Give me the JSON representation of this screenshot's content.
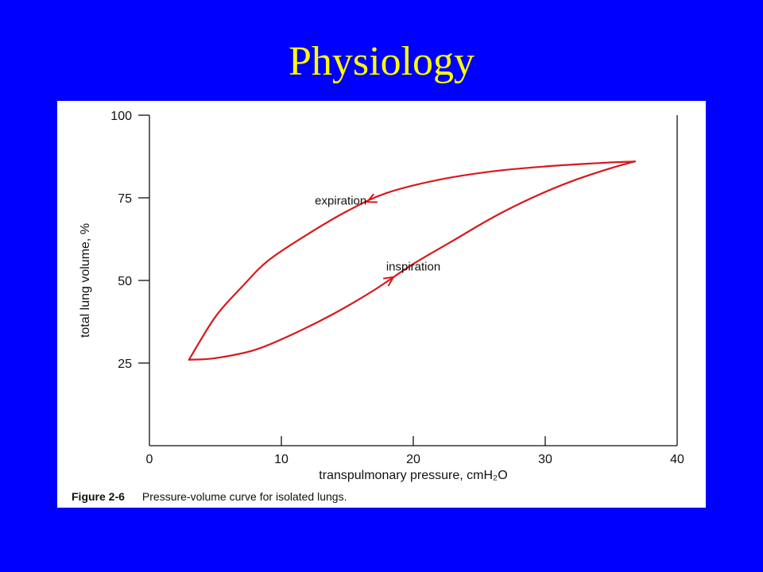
{
  "slide": {
    "title": "Physiology"
  },
  "chart_data": {
    "type": "line",
    "xlabel": "transpulmonary pressure, cmH₂O",
    "ylabel": "total lung volume, %",
    "xlim": [
      0,
      40
    ],
    "ylim": [
      0,
      100
    ],
    "x_ticks": [
      0,
      10,
      20,
      30,
      40
    ],
    "y_ticks": [
      25,
      50,
      75,
      100
    ],
    "grid": false,
    "series": [
      {
        "name": "inspiration",
        "x": [
          3,
          5,
          8,
          11,
          14,
          17,
          20,
          23,
          26,
          29,
          32,
          35,
          36.8
        ],
        "y": [
          26,
          26.5,
          29,
          34,
          40,
          47,
          55,
          62,
          69,
          75,
          80,
          84,
          86
        ],
        "color": "#d7191c"
      },
      {
        "name": "expiration",
        "x": [
          36.8,
          34,
          30,
          26,
          22,
          18,
          15,
          12,
          9,
          7,
          5,
          3
        ],
        "y": [
          86,
          85.5,
          84.5,
          83,
          80.5,
          76.5,
          71,
          64,
          56,
          48,
          39,
          26
        ],
        "color": "#d7191c"
      }
    ],
    "annotations": [
      {
        "text": "expiration",
        "x": 14.5,
        "y": 73
      },
      {
        "text": "inspiration",
        "x": 20,
        "y": 53
      }
    ],
    "caption": {
      "number": "Figure 2-6",
      "text": "Pressure-volume curve for isolated lungs."
    }
  }
}
